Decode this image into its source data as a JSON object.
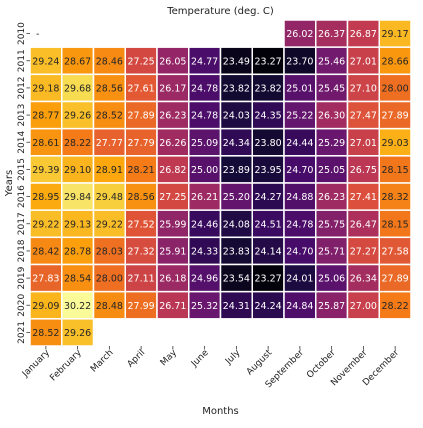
{
  "chart_data": {
    "type": "heatmap",
    "title": "Temperature (deg. C)",
    "xlabel": "Months",
    "ylabel": "Years",
    "x": [
      "January",
      "February",
      "March",
      "April",
      "May",
      "June",
      "July",
      "August",
      "September",
      "October",
      "November",
      "December"
    ],
    "y": [
      "2010",
      "2011",
      "2012",
      "2013",
      "2014",
      "2015",
      "2016",
      "2017",
      "2018",
      "2019",
      "2020",
      "2021"
    ],
    "cells": [
      [
        "-",
        "",
        "",
        "",
        "",
        "",
        "",
        "",
        "26.02",
        "26.37",
        "26.87",
        "29.17"
      ],
      [
        "29.24",
        "28.67",
        "28.46",
        "27.25",
        "26.05",
        "24.77",
        "23.49",
        "23.27",
        "23.70",
        "25.46",
        "27.01",
        "28.66"
      ],
      [
        "29.18",
        "29.68",
        "28.56",
        "27.61",
        "26.17",
        "24.78",
        "23.82",
        "23.82",
        "25.01",
        "25.45",
        "27.10",
        "28.00"
      ],
      [
        "28.77",
        "29.26",
        "28.52",
        "27.89",
        "26.23",
        "24.78",
        "24.03",
        "24.35",
        "25.22",
        "26.30",
        "27.47",
        "27.89"
      ],
      [
        "28.61",
        "28.22",
        "27.77",
        "27.79",
        "26.26",
        "25.09",
        "24.34",
        "23.80",
        "24.44",
        "25.29",
        "27.01",
        "29.03"
      ],
      [
        "29.39",
        "29.10",
        "28.91",
        "28.21",
        "26.82",
        "25.00",
        "23.89",
        "23.95",
        "24.70",
        "25.05",
        "26.75",
        "28.15"
      ],
      [
        "28.95",
        "29.84",
        "29.48",
        "28.56",
        "27.25",
        "26.21",
        "25.20",
        "24.27",
        "24.88",
        "26.23",
        "27.41",
        "28.32"
      ],
      [
        "29.22",
        "29.13",
        "29.22",
        "27.52",
        "25.99",
        "24.46",
        "24.08",
        "24.51",
        "24.78",
        "25.75",
        "26.47",
        "28.15"
      ],
      [
        "28.42",
        "28.78",
        "28.03",
        "27.32",
        "25.91",
        "24.33",
        "23.83",
        "24.14",
        "24.70",
        "25.71",
        "27.27",
        "27.58"
      ],
      [
        "27.83",
        "28.54",
        "28.00",
        "27.11",
        "26.18",
        "24.96",
        "23.54",
        "23.27",
        "24.01",
        "25.06",
        "26.34",
        "27.89"
      ],
      [
        "29.09",
        "30.22",
        "28.48",
        "27.99",
        "26.71",
        "25.32",
        "24.31",
        "24.24",
        "24.84",
        "25.87",
        "27.00",
        "28.22"
      ],
      [
        "28.52",
        "29.26",
        "",
        "",
        "",
        "",
        "",
        "",
        "",
        "",
        "",
        ""
      ]
    ],
    "colormap": "inferno",
    "vmin": 23.2,
    "vmax": 30.3,
    "grid": true,
    "cell_border_color": "#ffffff"
  }
}
